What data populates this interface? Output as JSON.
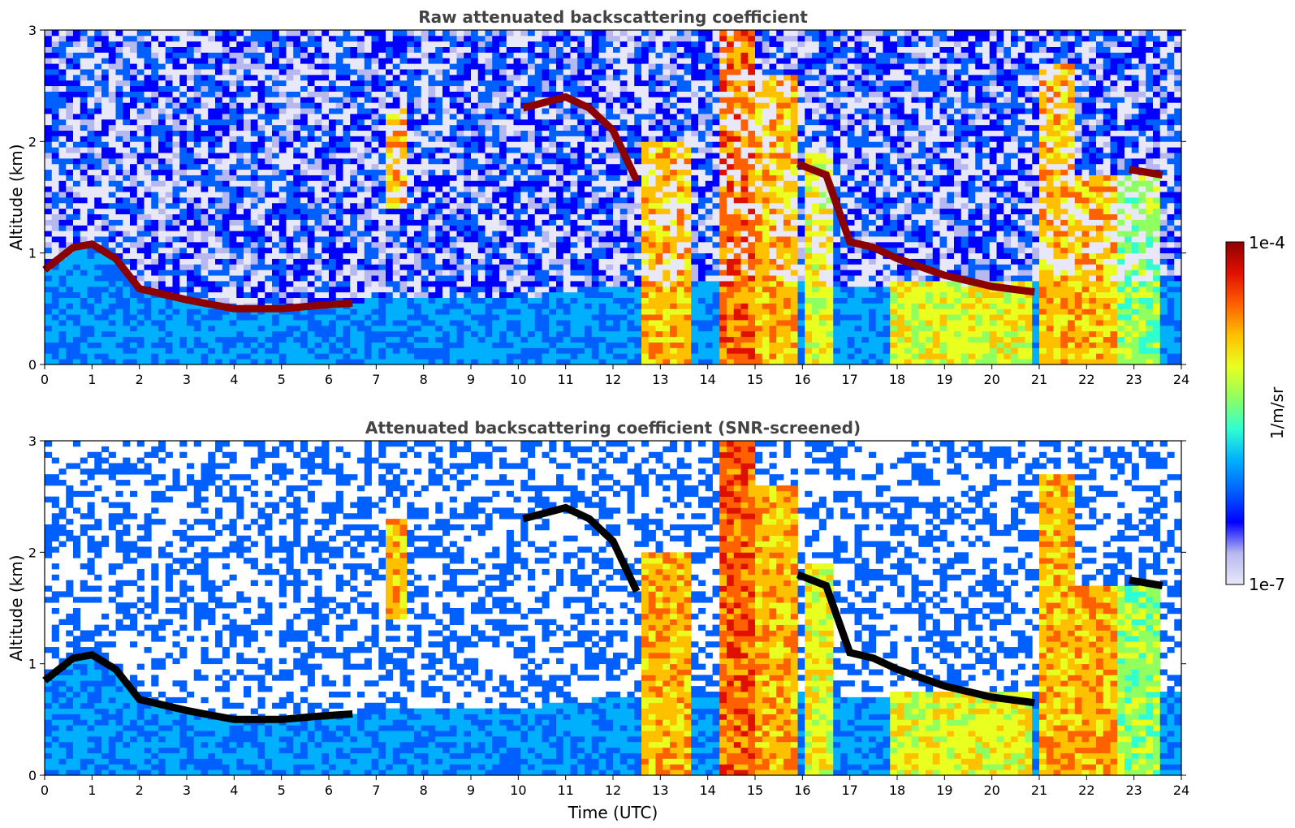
{
  "chart_data": [
    {
      "type": "heatmap",
      "title": "Raw attenuated backscattering coefficient",
      "xlabel": "",
      "ylabel": "Altitude (km)",
      "xlim": [
        0,
        24
      ],
      "ylim": [
        0,
        3
      ],
      "xticks": [
        "0",
        "1",
        "2",
        "3",
        "4",
        "5",
        "6",
        "7",
        "8",
        "9",
        "10",
        "11",
        "12",
        "13",
        "14",
        "15",
        "16",
        "17",
        "18",
        "19",
        "20",
        "21",
        "22",
        "23",
        "24"
      ],
      "yticks": [
        "0",
        "1",
        "2",
        "3"
      ],
      "screened": false
    },
    {
      "type": "heatmap",
      "title": "Attenuated backscattering coefficient (SNR-screened)",
      "xlabel": "Time (UTC)",
      "ylabel": "Altitude (km)",
      "xlim": [
        0,
        24
      ],
      "ylim": [
        0,
        3
      ],
      "xticks": [
        "0",
        "1",
        "2",
        "3",
        "4",
        "5",
        "6",
        "7",
        "8",
        "9",
        "10",
        "11",
        "12",
        "13",
        "14",
        "15",
        "16",
        "17",
        "18",
        "19",
        "20",
        "21",
        "22",
        "23",
        "24"
      ],
      "yticks": [
        "0",
        "1",
        "2",
        "3"
      ],
      "screened": true
    }
  ],
  "colorbar": {
    "label": "1/m/sr",
    "max_label": "1e-4",
    "min_label": "1e-7",
    "colormap": [
      "#e8e8f8",
      "#b8b8f0",
      "#0000ff",
      "#0060ff",
      "#00b0ff",
      "#30ffd0",
      "#90ff60",
      "#e8ff20",
      "#ffc000",
      "#ff6000",
      "#e01000",
      "#900000"
    ]
  },
  "layer_top_km": [
    [
      0,
      0.85
    ],
    [
      0.6,
      1.05
    ],
    [
      1,
      1.08
    ],
    [
      1.5,
      0.95
    ],
    [
      2,
      0.68
    ],
    [
      3,
      0.58
    ],
    [
      4,
      0.5
    ],
    [
      5,
      0.5
    ],
    [
      6,
      0.55
    ],
    [
      6.5,
      0.55
    ],
    [
      7,
      0.6
    ],
    [
      8,
      0.62
    ],
    [
      9,
      0.6
    ],
    [
      10,
      0.6
    ],
    [
      11,
      0.65
    ],
    [
      12,
      0.7
    ],
    [
      13,
      0.7
    ],
    [
      14,
      0.75
    ],
    [
      15,
      0.8
    ],
    [
      16,
      0.75
    ],
    [
      17,
      0.7
    ],
    [
      18,
      0.72
    ],
    [
      19,
      0.7
    ],
    [
      20,
      0.7
    ],
    [
      21,
      0.75
    ],
    [
      22,
      0.75
    ],
    [
      23,
      0.75
    ],
    [
      24,
      0.75
    ]
  ],
  "cloud_base_km": [
    [
      0,
      0.85
    ],
    [
      0.6,
      1.05
    ],
    [
      1,
      1.08
    ],
    [
      1.5,
      0.95
    ],
    [
      2,
      0.68
    ],
    [
      3,
      0.58
    ],
    [
      4,
      0.5
    ],
    [
      5,
      0.5
    ],
    [
      5.8,
      0.53
    ],
    [
      6.5,
      0.55
    ],
    [
      10.1,
      2.3
    ],
    [
      11,
      2.4
    ],
    [
      11.5,
      2.3
    ],
    [
      12,
      2.1
    ],
    [
      12.5,
      1.65
    ],
    [
      15.9,
      1.8
    ],
    [
      16.5,
      1.7
    ],
    [
      17,
      1.1
    ],
    [
      17.5,
      1.05
    ],
    [
      18,
      0.95
    ],
    [
      19,
      0.8
    ],
    [
      20,
      0.7
    ],
    [
      20.9,
      0.65
    ],
    [
      22.9,
      1.75
    ],
    [
      23.6,
      1.7
    ]
  ]
}
